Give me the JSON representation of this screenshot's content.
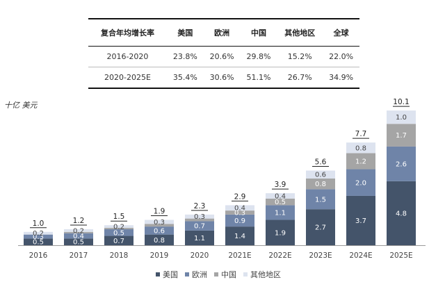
{
  "cagr_table": {
    "headers": [
      "复合年均增长率",
      "美国",
      "欧洲",
      "中国",
      "其他地区",
      "全球"
    ],
    "rows": [
      [
        "2016-2020",
        "23.8%",
        "20.6%",
        "29.8%",
        "15.2%",
        "22.0%"
      ],
      [
        "2020-2025E",
        "35.4%",
        "30.6%",
        "51.1%",
        "26.7%",
        "34.9%"
      ]
    ]
  },
  "unit_label": "十亿 美元",
  "colors": {
    "美国": "#44546a",
    "欧洲": "#6f84a8",
    "中国": "#a5a5a5",
    "其他地区": "#dde3ef"
  },
  "chart_data": {
    "type": "bar",
    "stacked": true,
    "categories": [
      "2016",
      "2017",
      "2018",
      "2019",
      "2020",
      "2021E",
      "2022E",
      "2023E",
      "2024E",
      "2025E"
    ],
    "series": [
      {
        "name": "美国",
        "values": [
          0.5,
          0.5,
          0.7,
          0.8,
          1.1,
          1.4,
          1.9,
          2.7,
          3.7,
          4.8
        ]
      },
      {
        "name": "欧洲",
        "values": [
          0.3,
          0.4,
          0.5,
          0.6,
          0.7,
          0.9,
          1.1,
          1.5,
          2.0,
          2.6
        ]
      },
      {
        "name": "中国",
        "values": [
          0.0,
          0.1,
          0.1,
          0.2,
          0.2,
          0.3,
          0.5,
          0.8,
          1.2,
          1.7
        ]
      },
      {
        "name": "其他地区",
        "values": [
          0.2,
          0.2,
          0.2,
          0.3,
          0.3,
          0.4,
          0.4,
          0.6,
          0.8,
          1.0
        ]
      }
    ],
    "segment_labels": [
      [
        "0.5",
        "0.3",
        "",
        "0.2"
      ],
      [
        "0.5",
        "0.4",
        "",
        "0.2"
      ],
      [
        "0.7",
        "0.5",
        "",
        "0.2"
      ],
      [
        "0.8",
        "0.6",
        "",
        "0.3"
      ],
      [
        "1.1",
        "0.7",
        "",
        "0.3"
      ],
      [
        "1.4",
        "0.9",
        "0.3",
        "0.4"
      ],
      [
        "1.9",
        "1.1",
        "0.5",
        "0.4"
      ],
      [
        "2.7",
        "1.5",
        "0.8",
        "0.6"
      ],
      [
        "3.7",
        "2.0",
        "1.2",
        "0.8"
      ],
      [
        "4.8",
        "2.6",
        "1.7",
        "1.0"
      ]
    ],
    "totals": [
      "1.0",
      "1.2",
      "1.5",
      "1.9",
      "2.3",
      "2.9",
      "3.9",
      "5.6",
      "7.7",
      "10.1"
    ],
    "legend": [
      "美国",
      "欧洲",
      "中国",
      "其他地区"
    ],
    "legend_position": "bottom",
    "grid": false
  }
}
